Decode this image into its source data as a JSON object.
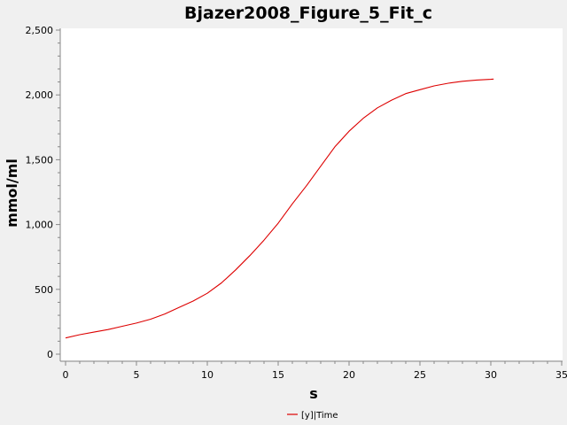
{
  "chart_data": {
    "type": "line",
    "title": "Bjazer2008_Figure_5_Fit_c",
    "xlabel": "s",
    "ylabel": "mmol/ml",
    "xlim": [
      0,
      35
    ],
    "ylim": [
      0,
      2500
    ],
    "x_ticks": [
      0,
      5,
      10,
      15,
      20,
      25,
      30,
      35
    ],
    "x_tick_labels": [
      "0",
      "5",
      "10",
      "15",
      "20",
      "25",
      "30",
      "35"
    ],
    "y_ticks": [
      0,
      500,
      1000,
      1500,
      2000,
      2500
    ],
    "y_tick_labels": [
      "0",
      "500",
      "1,000",
      "1,500",
      "2,000",
      "2,500"
    ],
    "grid": false,
    "legend_position": "bottom-center",
    "series": [
      {
        "name": "[y]|Time",
        "color": "#dd0000",
        "x": [
          0,
          1,
          2,
          3,
          4,
          5,
          6,
          7,
          8,
          9,
          10,
          11,
          12,
          13,
          14,
          15,
          16,
          17,
          18,
          19,
          20,
          21,
          22,
          23,
          24,
          25,
          26,
          27,
          28,
          29,
          30,
          30.2
        ],
        "y": [
          125,
          150,
          170,
          190,
          215,
          240,
          270,
          310,
          360,
          410,
          470,
          550,
          650,
          760,
          880,
          1010,
          1160,
          1300,
          1450,
          1600,
          1720,
          1820,
          1900,
          1960,
          2010,
          2040,
          2070,
          2090,
          2105,
          2115,
          2120,
          2122
        ]
      }
    ]
  }
}
